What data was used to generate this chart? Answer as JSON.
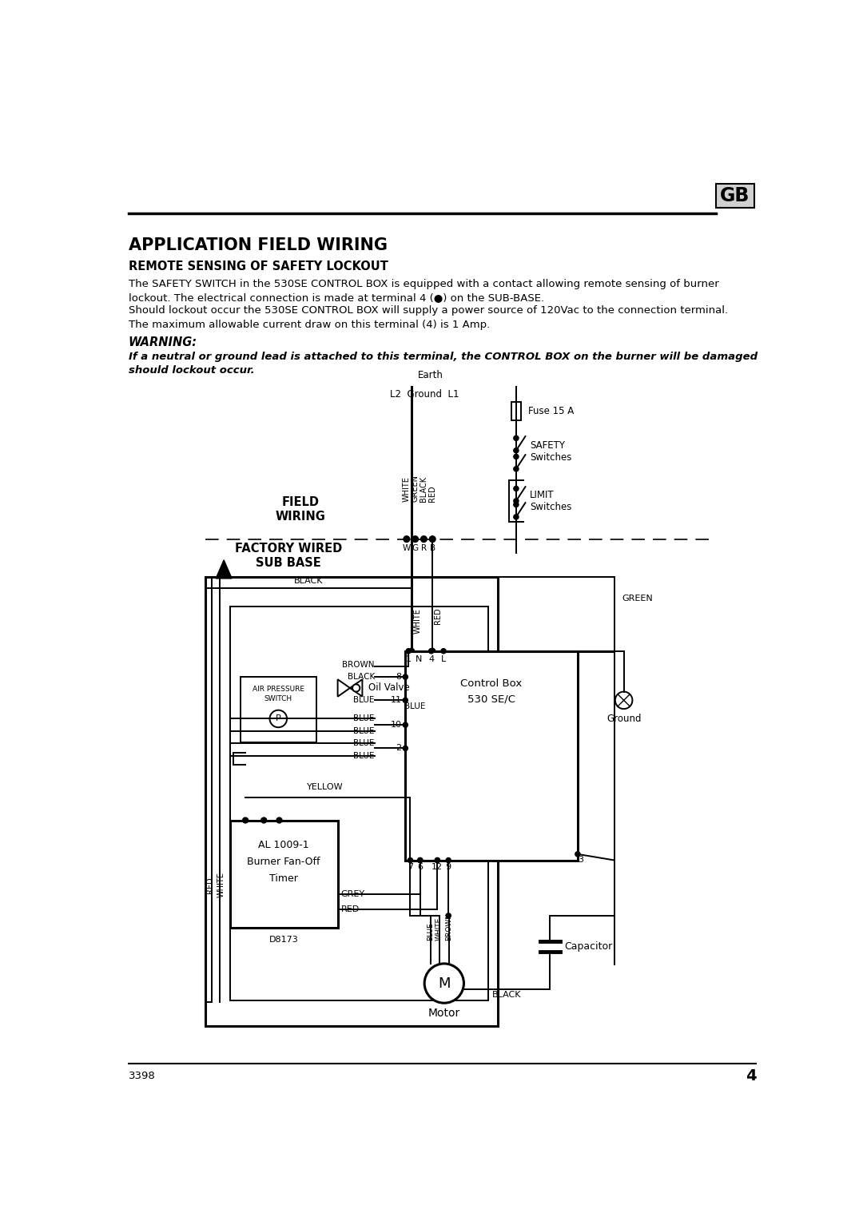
{
  "bg_color": "#ffffff",
  "title": "APPLICATION FIELD WIRING",
  "subtitle": "REMOTE SENSING OF SAFETY LOCKOUT",
  "body_text1": "The SAFETY SWITCH in the 530SE CONTROL BOX is equipped with a contact allowing remote sensing of burner\nlockout. The electrical connection is made at terminal 4 (●) on the SUB-BASE.",
  "body_text2": "Should lockout occur the 530SE CONTROL BOX will supply a power source of 120Vac to the connection terminal.\nThe maximum allowable current draw on this terminal (4) is 1 Amp.",
  "warning_title": "WARNING:",
  "warning_body": "If a neutral or ground lead is attached to this terminal, the CONTROL BOX on the burner will be damaged\nshould lockout occur.",
  "gb_label": "GB",
  "page_num": "4",
  "doc_num": "3398",
  "diagram_note": "D8173"
}
